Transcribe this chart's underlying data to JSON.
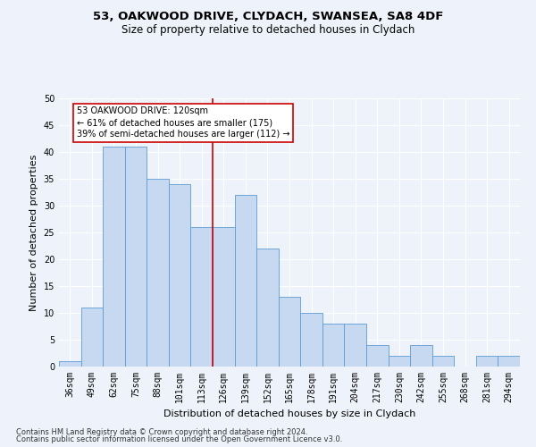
{
  "title1": "53, OAKWOOD DRIVE, CLYDACH, SWANSEA, SA8 4DF",
  "title2": "Size of property relative to detached houses in Clydach",
  "xlabel": "Distribution of detached houses by size in Clydach",
  "ylabel": "Number of detached properties",
  "categories": [
    "36sqm",
    "49sqm",
    "62sqm",
    "75sqm",
    "88sqm",
    "101sqm",
    "113sqm",
    "126sqm",
    "139sqm",
    "152sqm",
    "165sqm",
    "178sqm",
    "191sqm",
    "204sqm",
    "217sqm",
    "230sqm",
    "242sqm",
    "255sqm",
    "268sqm",
    "281sqm",
    "294sqm"
  ],
  "values": [
    1,
    11,
    41,
    41,
    35,
    34,
    26,
    26,
    32,
    22,
    13,
    10,
    8,
    8,
    4,
    2,
    4,
    2,
    0,
    2,
    2
  ],
  "bar_color": "#c6d9f0",
  "bar_edge_color": "#5b9bd5",
  "red_line_color": "#cc0000",
  "annotation_text": "53 OAKWOOD DRIVE: 120sqm\n← 61% of detached houses are smaller (175)\n39% of semi-detached houses are larger (112) →",
  "annotation_box_color": "white",
  "annotation_box_edge_color": "#cc0000",
  "ylim": [
    0,
    50
  ],
  "yticks": [
    0,
    5,
    10,
    15,
    20,
    25,
    30,
    35,
    40,
    45,
    50
  ],
  "footnote1": "Contains HM Land Registry data © Crown copyright and database right 2024.",
  "footnote2": "Contains public sector information licensed under the Open Government Licence v3.0.",
  "bg_color": "#eef2fa",
  "grid_color": "#ffffff",
  "title1_fontsize": 9.5,
  "title2_fontsize": 8.5,
  "xlabel_fontsize": 8,
  "ylabel_fontsize": 8,
  "tick_fontsize": 7,
  "footnote_fontsize": 6,
  "annot_fontsize": 7
}
